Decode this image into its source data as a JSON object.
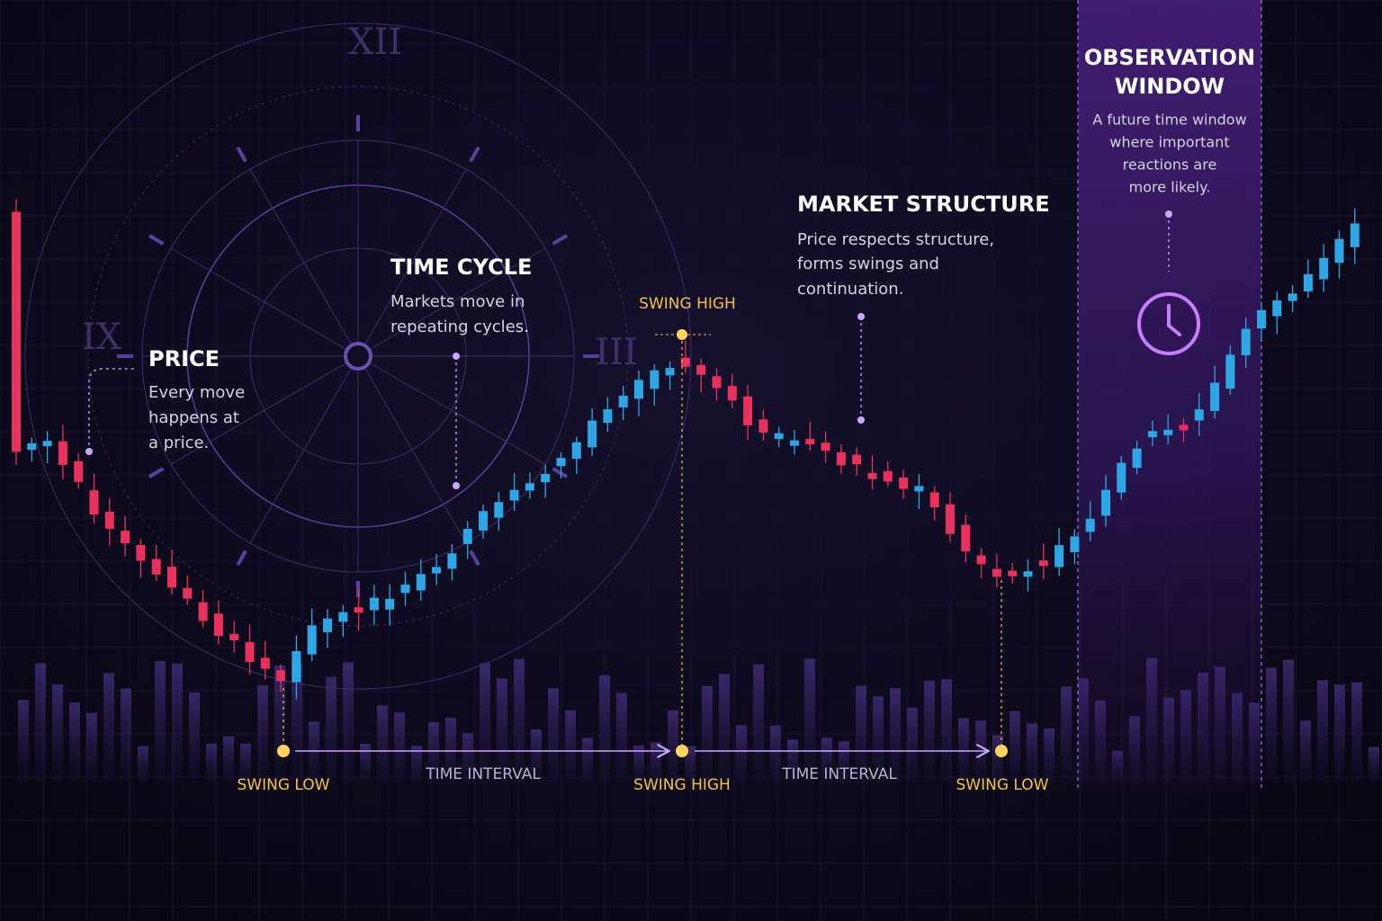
{
  "clock": {
    "numerals": [
      "XII",
      "IX",
      "III"
    ]
  },
  "annotations": [
    {
      "title": "PRICE",
      "lines": [
        "Every move",
        "happens at",
        "a price."
      ]
    },
    {
      "title": "TIME CYCLE",
      "lines": [
        "Markets move in",
        "repeating cycles."
      ]
    },
    {
      "title": "MARKET STRUCTURE",
      "lines": [
        "Price respects structure,",
        "forms swings and",
        "continuation."
      ]
    }
  ],
  "observation_window": {
    "title": [
      "OBSERVATION",
      "WINDOW"
    ],
    "lines": [
      "A future time window",
      "where important",
      "reactions are",
      "more likely."
    ]
  },
  "peak_label": "SWING HIGH",
  "timeline": {
    "points": [
      "SWING LOW",
      "SWING HIGH",
      "SWING LOW"
    ],
    "intervals": [
      "TIME INTERVAL",
      "TIME INTERVAL"
    ]
  }
}
